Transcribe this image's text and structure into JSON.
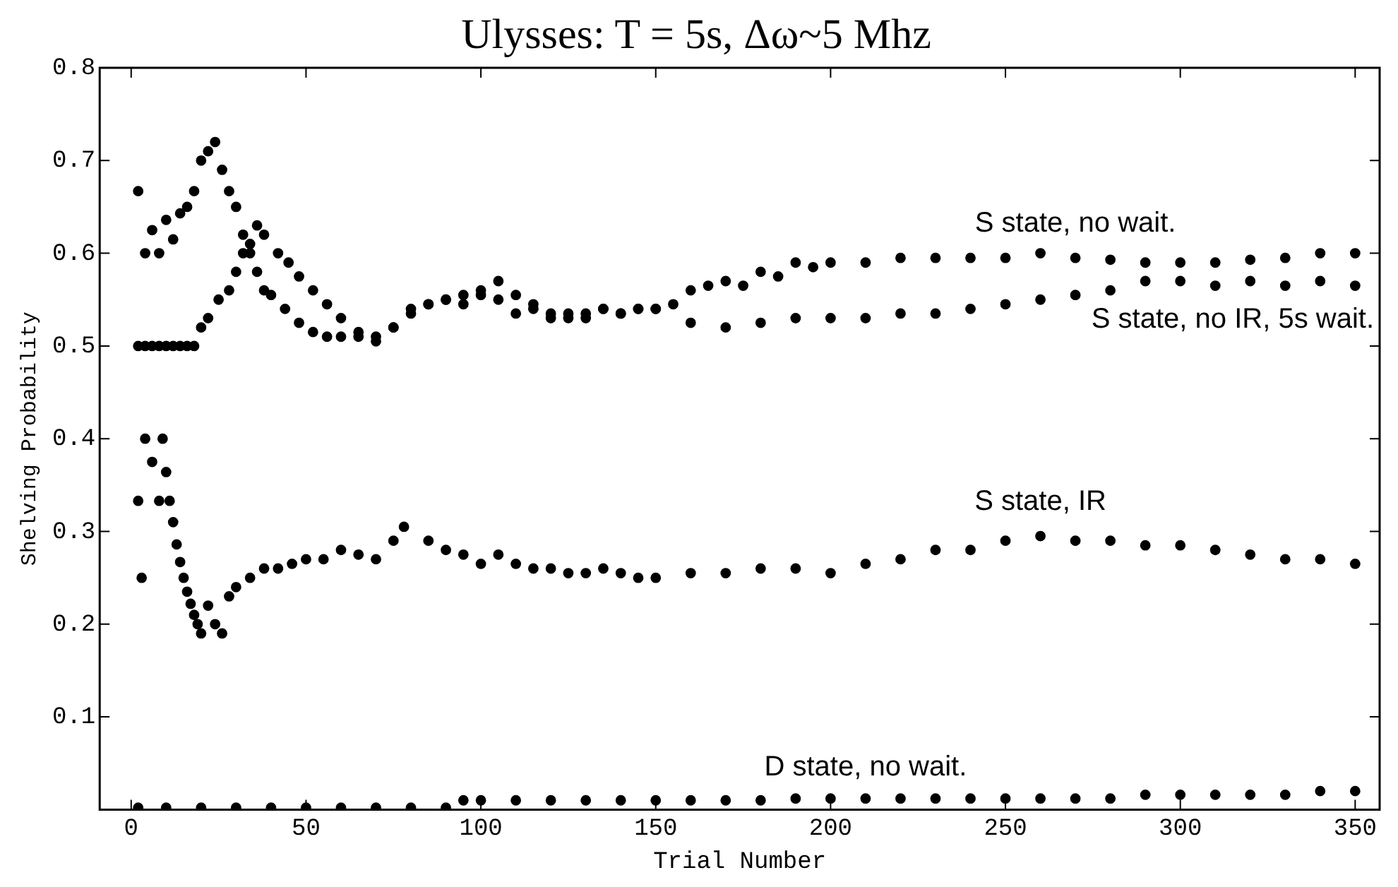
{
  "chart_data": {
    "type": "scatter",
    "title": "Ulysses: T = 5s, Δω~5 Mhz",
    "xlabel": "Trial Number",
    "ylabel": "Shelving Probability",
    "xlim": [
      -9,
      357
    ],
    "ylim": [
      0,
      0.8
    ],
    "xticks": [
      0,
      50,
      100,
      150,
      200,
      250,
      300,
      350
    ],
    "yticks": [
      0.1,
      0.2,
      0.3,
      0.4,
      0.5,
      0.6,
      0.7,
      0.8
    ],
    "grid": false,
    "legend": false,
    "marker": "circle",
    "series": [
      {
        "name": "S state, no wait.",
        "color": "#000000",
        "x": [
          2,
          4,
          6,
          8,
          10,
          12,
          14,
          16,
          18,
          20,
          22,
          24,
          26,
          28,
          30,
          32,
          34,
          36,
          38,
          40,
          44,
          48,
          52,
          56,
          60,
          65,
          70,
          75,
          80,
          85,
          90,
          95,
          100,
          105,
          110,
          115,
          120,
          125,
          130,
          135,
          140,
          145,
          150,
          155,
          160,
          165,
          170,
          175,
          180,
          185,
          190,
          195,
          200,
          210,
          220,
          230,
          240,
          250,
          260,
          270,
          280,
          290,
          300,
          310,
          320,
          330,
          340,
          350
        ],
        "values": [
          0.667,
          0.6,
          0.625,
          0.6,
          0.636,
          0.615,
          0.643,
          0.65,
          0.667,
          0.7,
          0.71,
          0.72,
          0.69,
          0.667,
          0.65,
          0.62,
          0.6,
          0.58,
          0.56,
          0.555,
          0.54,
          0.525,
          0.515,
          0.51,
          0.51,
          0.51,
          0.505,
          0.52,
          0.535,
          0.545,
          0.55,
          0.555,
          0.56,
          0.57,
          0.555,
          0.545,
          0.535,
          0.53,
          0.535,
          0.54,
          0.535,
          0.54,
          0.54,
          0.545,
          0.56,
          0.565,
          0.57,
          0.565,
          0.58,
          0.575,
          0.59,
          0.585,
          0.59,
          0.59,
          0.595,
          0.595,
          0.595,
          0.595,
          0.6,
          0.595,
          0.593,
          0.59,
          0.59,
          0.59,
          0.593,
          0.595,
          0.6,
          0.6
        ]
      },
      {
        "name": "S state, no IR, 5s wait.",
        "color": "#000000",
        "x": [
          2,
          4,
          6,
          8,
          10,
          12,
          14,
          16,
          18,
          20,
          22,
          25,
          28,
          30,
          32,
          34,
          36,
          38,
          42,
          45,
          48,
          52,
          56,
          60,
          65,
          70,
          75,
          80,
          85,
          90,
          95,
          100,
          105,
          110,
          115,
          120,
          125,
          130,
          135,
          140,
          145,
          150,
          160,
          170,
          180,
          190,
          200,
          210,
          220,
          230,
          240,
          250,
          260,
          270,
          280,
          290,
          300,
          310,
          320,
          330,
          340,
          350
        ],
        "values": [
          0.5,
          0.5,
          0.5,
          0.5,
          0.5,
          0.5,
          0.5,
          0.5,
          0.5,
          0.52,
          0.53,
          0.55,
          0.56,
          0.58,
          0.6,
          0.61,
          0.63,
          0.62,
          0.6,
          0.59,
          0.575,
          0.56,
          0.545,
          0.53,
          0.515,
          0.51,
          0.52,
          0.54,
          0.545,
          0.55,
          0.545,
          0.555,
          0.55,
          0.535,
          0.54,
          0.53,
          0.535,
          0.53,
          0.54,
          0.535,
          0.54,
          0.54,
          0.525,
          0.52,
          0.525,
          0.53,
          0.53,
          0.53,
          0.535,
          0.535,
          0.54,
          0.545,
          0.55,
          0.555,
          0.56,
          0.57,
          0.57,
          0.565,
          0.57,
          0.565,
          0.57,
          0.565
        ]
      },
      {
        "name": "S state, IR",
        "color": "#000000",
        "x": [
          2,
          3,
          4,
          6,
          8,
          9,
          10,
          11,
          12,
          13,
          14,
          15,
          16,
          17,
          18,
          19,
          20,
          22,
          24,
          26,
          28,
          30,
          34,
          38,
          42,
          46,
          50,
          55,
          60,
          65,
          70,
          75,
          78,
          85,
          90,
          95,
          100,
          105,
          110,
          115,
          120,
          125,
          130,
          135,
          140,
          145,
          150,
          160,
          170,
          180,
          190,
          200,
          210,
          220,
          230,
          240,
          250,
          260,
          270,
          280,
          290,
          300,
          310,
          320,
          330,
          340,
          350
        ],
        "values": [
          0.333,
          0.25,
          0.4,
          0.375,
          0.333,
          0.4,
          0.364,
          0.333,
          0.31,
          0.286,
          0.267,
          0.25,
          0.235,
          0.222,
          0.21,
          0.2,
          0.19,
          0.22,
          0.2,
          0.19,
          0.23,
          0.24,
          0.25,
          0.26,
          0.26,
          0.265,
          0.27,
          0.27,
          0.28,
          0.275,
          0.27,
          0.29,
          0.305,
          0.29,
          0.28,
          0.275,
          0.265,
          0.275,
          0.265,
          0.26,
          0.26,
          0.255,
          0.255,
          0.26,
          0.255,
          0.25,
          0.25,
          0.255,
          0.255,
          0.26,
          0.26,
          0.255,
          0.265,
          0.27,
          0.28,
          0.28,
          0.29,
          0.295,
          0.29,
          0.29,
          0.285,
          0.285,
          0.28,
          0.275,
          0.27,
          0.27,
          0.265
        ]
      },
      {
        "name": "D state, no wait.",
        "color": "#000000",
        "x": [
          2,
          10,
          20,
          30,
          40,
          50,
          60,
          70,
          80,
          90,
          95,
          100,
          110,
          120,
          130,
          140,
          150,
          160,
          170,
          180,
          190,
          200,
          210,
          220,
          230,
          240,
          250,
          260,
          270,
          280,
          290,
          300,
          310,
          320,
          330,
          340,
          350
        ],
        "values": [
          0.002,
          0.002,
          0.002,
          0.002,
          0.002,
          0.002,
          0.002,
          0.002,
          0.002,
          0.002,
          0.01,
          0.01,
          0.01,
          0.01,
          0.01,
          0.01,
          0.01,
          0.01,
          0.01,
          0.01,
          0.012,
          0.012,
          0.012,
          0.012,
          0.012,
          0.012,
          0.012,
          0.012,
          0.012,
          0.012,
          0.016,
          0.016,
          0.016,
          0.016,
          0.016,
          0.02,
          0.02
        ]
      }
    ]
  }
}
